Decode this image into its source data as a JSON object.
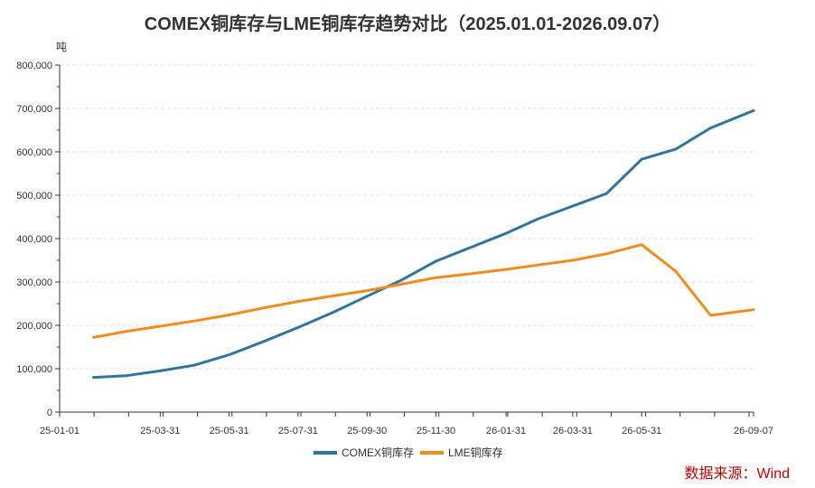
{
  "chart_data": {
    "type": "line",
    "title": "COMEX铜库存与LME铜库存趋势对比（2025.01.01-2026.09.07）",
    "ylabel": "吨",
    "xlabel": "",
    "ylim": [
      0,
      800000
    ],
    "yticks": [
      0,
      100000,
      200000,
      300000,
      400000,
      500000,
      600000,
      700000,
      800000
    ],
    "ytick_labels": [
      "0",
      "100,000",
      "200,000",
      "300,000",
      "400,000",
      "500,000",
      "600,000",
      "700,000",
      "800,000"
    ],
    "xlim": [
      "2025-01-01",
      "2026-09-07"
    ],
    "xticks": [
      "2025-01-01",
      "2025-03-31",
      "2025-05-31",
      "2025-07-31",
      "2025-09-30",
      "2025-11-30",
      "2026-01-31",
      "2026-03-31",
      "2026-05-31",
      "2026-09-07"
    ],
    "xtick_labels": [
      "25-01-01",
      "25-03-31",
      "25-05-31",
      "25-07-31",
      "25-09-30",
      "25-11-30",
      "26-01-31",
      "26-03-31",
      "26-05-31",
      "26-09-07"
    ],
    "grid": true,
    "legend_position": "bottom",
    "series": [
      {
        "name": "COMEX铜库存",
        "color": "#2e75a0",
        "x": [
          "2025-01-31",
          "2025-03-01",
          "2025-03-31",
          "2025-04-30",
          "2025-05-31",
          "2025-06-30",
          "2025-07-31",
          "2025-08-31",
          "2025-09-30",
          "2025-10-31",
          "2025-11-30",
          "2025-12-31",
          "2026-01-31",
          "2026-02-28",
          "2026-03-31",
          "2026-04-30",
          "2026-05-31",
          "2026-06-30",
          "2026-07-31",
          "2026-09-07"
        ],
        "values": [
          80000,
          84000,
          95000,
          108000,
          132000,
          162000,
          195000,
          230000,
          267000,
          305000,
          348000,
          380000,
          412000,
          445000,
          475000,
          504000,
          583000,
          606000,
          655000,
          695000
        ]
      },
      {
        "name": "LME铜库存",
        "color": "#f08c1e",
        "x": [
          "2025-01-31",
          "2025-03-01",
          "2025-03-31",
          "2025-04-30",
          "2025-05-31",
          "2025-06-30",
          "2025-07-31",
          "2025-08-31",
          "2025-09-30",
          "2025-10-31",
          "2025-11-30",
          "2025-12-31",
          "2026-01-31",
          "2026-02-28",
          "2026-03-31",
          "2026-04-30",
          "2026-05-31",
          "2026-06-30",
          "2026-07-31",
          "2026-09-07"
        ],
        "values": [
          172000,
          186000,
          198000,
          210000,
          224000,
          240000,
          255000,
          268000,
          280000,
          295000,
          310000,
          319000,
          329000,
          339000,
          350000,
          365000,
          386000,
          325000,
          223000,
          236000
        ]
      }
    ]
  },
  "source": "数据来源：Wind"
}
